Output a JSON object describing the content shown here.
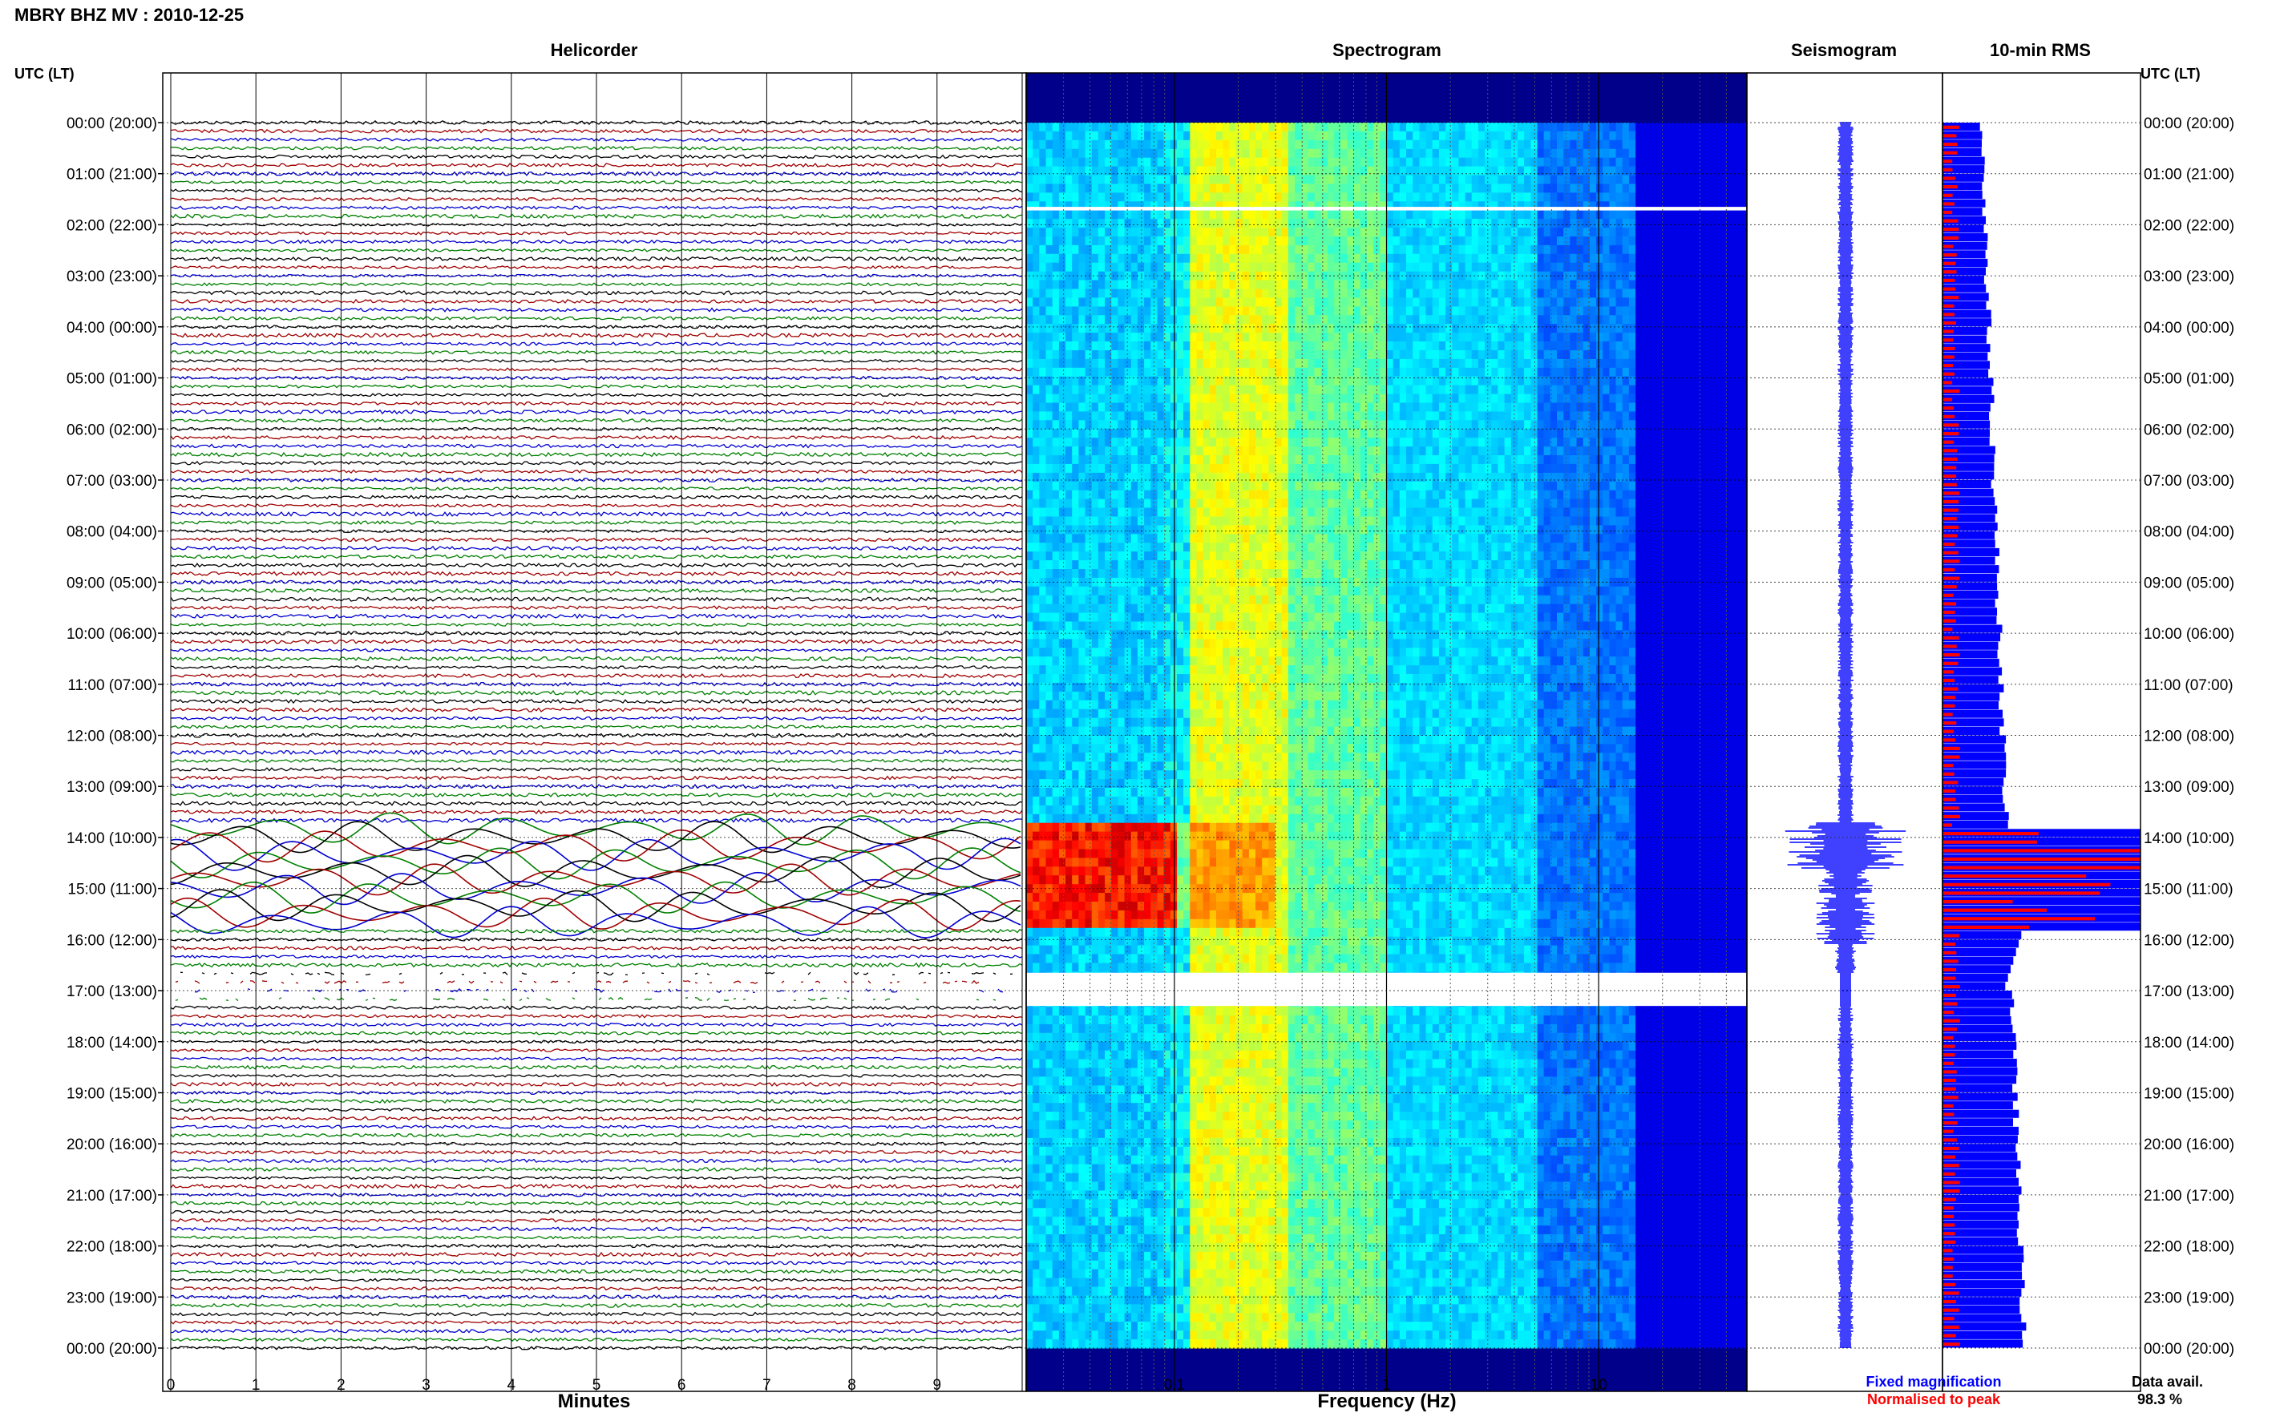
{
  "title": "MBRY BHZ MV : 2010-12-25",
  "colors": {
    "trace_cycle": [
      "#000000",
      "#a00000",
      "#0000d0",
      "#008000"
    ],
    "fixed": "#0000ff",
    "normalised": "#ff0000",
    "spec_background": "#00008b",
    "gap": "#ffffff"
  },
  "labels": {
    "helicorder": "Helicorder",
    "spectrogram": "Spectrogram",
    "seismogram": "Seismogram",
    "rms": "10-min RMS",
    "utc_lt": "UTC (LT)",
    "minutes": "Minutes",
    "frequency": "Frequency (Hz)",
    "legend_fixed": "Fixed magnification",
    "legend_normalised": "Normalised to peak",
    "data_avail_label": "Data avail.",
    "data_avail_value": "98.3 %"
  },
  "chart_data": [
    {
      "type": "line",
      "panel": "helicorder",
      "xlabel": "Minutes",
      "x_ticks": [
        "0",
        "1",
        "2",
        "3",
        "4",
        "5",
        "6",
        "7",
        "8",
        "9"
      ],
      "x_range": [
        0,
        10
      ],
      "rows_per_hour": 6,
      "row_minutes": 10,
      "time_ticks_utc": [
        "00:00 (20:00)",
        "01:00 (21:00)",
        "02:00 (22:00)",
        "03:00 (23:00)",
        "04:00 (00:00)",
        "05:00 (01:00)",
        "06:00 (02:00)",
        "07:00 (03:00)",
        "08:00 (04:00)",
        "09:00 (05:00)",
        "10:00 (06:00)",
        "11:00 (07:00)",
        "12:00 (08:00)",
        "13:00 (09:00)",
        "14:00 (10:00)",
        "15:00 (11:00)",
        "16:00 (12:00)",
        "17:00 (13:00)",
        "18:00 (14:00)",
        "19:00 (15:00)",
        "20:00 (16:00)",
        "21:00 (17:00)",
        "22:00 (18:00)",
        "23:00 (19:00)",
        "00:00 (20:00)"
      ],
      "event_hours": [
        13.75,
        15.75
      ],
      "gap_hours": [
        16.65,
        17.3
      ]
    },
    {
      "type": "heatmap",
      "panel": "spectrogram",
      "xlabel": "Frequency (Hz)",
      "x_scale": "log",
      "x_range": [
        0.02,
        50
      ],
      "x_ticks": [
        "0.1",
        "1",
        "10"
      ],
      "gap_hours": [
        [
          1.65,
          1.72
        ],
        [
          16.65,
          17.3
        ]
      ],
      "event_hours": [
        13.75,
        15.75
      ]
    },
    {
      "type": "line",
      "panel": "seismogram",
      "legend": "Fixed magnification",
      "event_hours": [
        13.75,
        15.75
      ]
    },
    {
      "type": "bar",
      "panel": "rms",
      "orientation": "horizontal",
      "bins_per_hour": 6,
      "hours": 24,
      "series": [
        {
          "name": "Fixed magnification",
          "note": "blue bars, peak clipped at panel edge near 14:00-16:00 UTC"
        },
        {
          "name": "Normalised to peak",
          "note": "red bars, peak reaching full width near 14:20 UTC"
        }
      ],
      "peak_hours": [
        13.75,
        15.75
      ]
    }
  ]
}
